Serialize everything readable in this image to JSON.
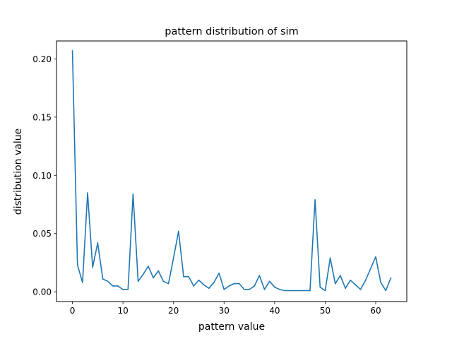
{
  "chart_data": {
    "type": "line",
    "title": "pattern distribution of sim",
    "xlabel": "pattern value",
    "ylabel": "distribution value",
    "xlim": [
      -3.15,
      66.15
    ],
    "ylim": [
      -0.0084,
      0.2154
    ],
    "x_ticks": [
      0,
      10,
      20,
      30,
      40,
      50,
      60
    ],
    "y_ticks": [
      0.0,
      0.05,
      0.1,
      0.15,
      0.2
    ],
    "y_tick_labels": [
      "0.00",
      "0.05",
      "0.10",
      "0.15",
      "0.20"
    ],
    "grid": false,
    "series": [
      {
        "color": "#1f77b4",
        "x": [
          0,
          1,
          2,
          3,
          4,
          5,
          6,
          7,
          8,
          9,
          10,
          11,
          12,
          13,
          14,
          15,
          16,
          17,
          18,
          19,
          20,
          21,
          22,
          23,
          24,
          25,
          26,
          27,
          28,
          29,
          30,
          31,
          32,
          33,
          34,
          35,
          36,
          37,
          38,
          39,
          40,
          41,
          42,
          43,
          44,
          45,
          46,
          47,
          48,
          49,
          50,
          51,
          52,
          53,
          54,
          55,
          56,
          57,
          58,
          59,
          60,
          61,
          62,
          63
        ],
        "values": [
          0.207,
          0.023,
          0.008,
          0.085,
          0.021,
          0.042,
          0.011,
          0.009,
          0.005,
          0.005,
          0.002,
          0.002,
          0.084,
          0.009,
          0.015,
          0.022,
          0.012,
          0.018,
          0.009,
          0.007,
          0.029,
          0.052,
          0.013,
          0.013,
          0.005,
          0.01,
          0.006,
          0.003,
          0.008,
          0.016,
          0.002,
          0.005,
          0.007,
          0.007,
          0.002,
          0.002,
          0.005,
          0.014,
          0.002,
          0.009,
          0.004,
          0.002,
          0.001,
          0.001,
          0.001,
          0.001,
          0.001,
          0.001,
          0.079,
          0.004,
          0.001,
          0.029,
          0.007,
          0.014,
          0.003,
          0.01,
          0.006,
          0.002,
          0.01,
          0.02,
          0.03,
          0.008,
          0.001,
          0.012
        ]
      }
    ]
  }
}
